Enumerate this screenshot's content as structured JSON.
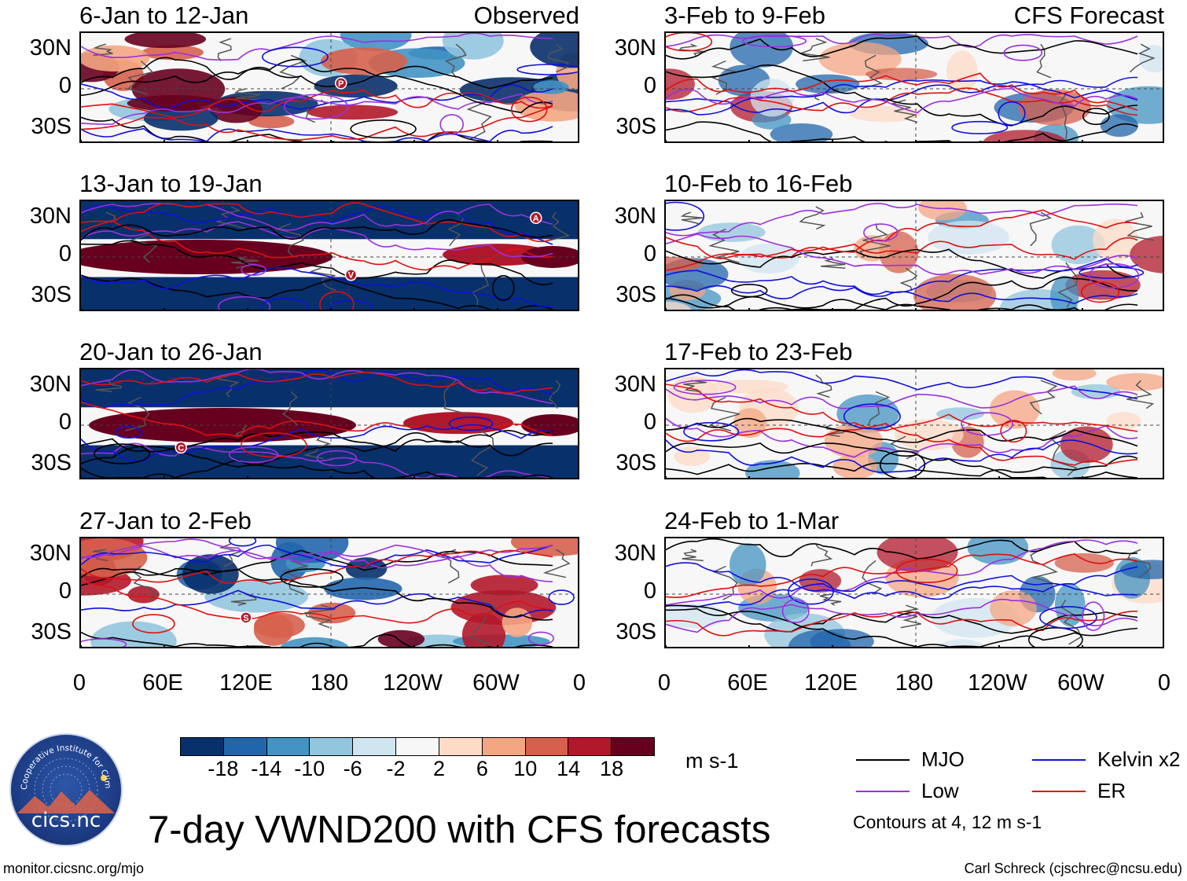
{
  "chart_data": {
    "type": "heatmap",
    "title": "7-day VWND200 with CFS forecasts",
    "variable": "VWND200",
    "units": "m s-1",
    "x_ticks": [
      "0",
      "60E",
      "120E",
      "180",
      "120W",
      "60W",
      "0"
    ],
    "y_ticks": [
      "30N",
      "0",
      "30S"
    ],
    "columns": [
      {
        "header": "Observed",
        "panels": [
          {
            "title": "6-Jan to 12-Jan",
            "labels": [
              "P"
            ]
          },
          {
            "title": "13-Jan to 19-Jan",
            "labels": [
              "A",
              "V"
            ]
          },
          {
            "title": "20-Jan to 26-Jan",
            "labels": [
              "C"
            ]
          },
          {
            "title": "27-Jan to 2-Feb",
            "labels": [
              "S"
            ]
          }
        ]
      },
      {
        "header": "CFS Forecast",
        "panels": [
          {
            "title": "3-Feb to 9-Feb",
            "labels": []
          },
          {
            "title": "10-Feb to 16-Feb",
            "labels": []
          },
          {
            "title": "17-Feb to 23-Feb",
            "labels": []
          },
          {
            "title": "24-Feb to 1-Mar",
            "labels": []
          }
        ]
      }
    ],
    "colorbar": {
      "ticks": [
        "-18",
        "-14",
        "-10",
        "-6",
        "-2",
        "2",
        "6",
        "10",
        "14",
        "18"
      ],
      "colors": [
        "#08306b",
        "#2166ac",
        "#4393c3",
        "#92c5de",
        "#d1e5f0",
        "#f7f7f7",
        "#fddbc7",
        "#f4a582",
        "#d6604d",
        "#b2182b",
        "#67001f"
      ]
    },
    "legend": [
      {
        "label": "MJO",
        "color": "#000000"
      },
      {
        "label": "Kelvin x2",
        "color": "#1010dd"
      },
      {
        "label": "Low",
        "color": "#9b30e0"
      },
      {
        "label": "ER",
        "color": "#e01010"
      }
    ],
    "contour_note": "Contours at 4, 12 m s-1"
  },
  "logo": {
    "ring_text": "Cooperative Institute for Climate and Satellites",
    "name": "cics.nc"
  },
  "footer": {
    "left": "monitor.cicsnc.org/mjo",
    "right": "Carl Schreck (cjschrec@ncsu.edu)"
  }
}
